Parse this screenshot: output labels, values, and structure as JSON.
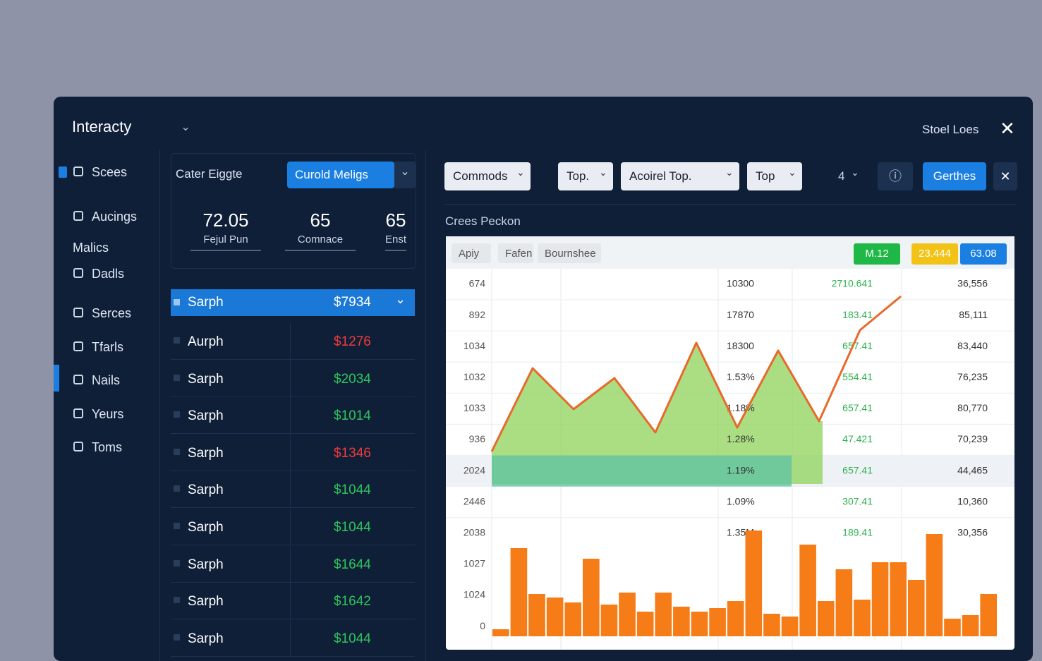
{
  "header": {
    "app_name": "Interacty",
    "user": "Stoel Loes"
  },
  "sidebar": {
    "items": [
      "Scees",
      "Aucings",
      "Malics",
      "Dadls",
      "Serces",
      "Tfarls",
      "Nails",
      "Yeurs",
      "Toms"
    ]
  },
  "left_panel": {
    "label": "Cater Eiggte",
    "button": "Curold Meligs",
    "stats": [
      {
        "value": 72.05,
        "label": "Fejul Pun"
      },
      {
        "value": 65,
        "label": "Comnace"
      },
      {
        "value": 65,
        "label": "Enst"
      }
    ],
    "rows": [
      {
        "name": "Sarph",
        "amount": "$7934",
        "color": "#ffffff"
      },
      {
        "name": "Aurph",
        "amount": "$1276",
        "color": "#ef3b3b"
      },
      {
        "name": "Sarph",
        "amount": "$2034",
        "color": "#2fc45a"
      },
      {
        "name": "Sarph",
        "amount": "$1014",
        "color": "#2fc45a"
      },
      {
        "name": "Sarph",
        "amount": "$1346",
        "color": "#ef3b3b"
      },
      {
        "name": "Sarph",
        "amount": "$1044",
        "color": "#2fc45a"
      },
      {
        "name": "Sarph",
        "amount": "$1044",
        "color": "#2fc45a"
      },
      {
        "name": "Sarph",
        "amount": "$1644",
        "color": "#2fc45a"
      },
      {
        "name": "Sarph",
        "amount": "$1642",
        "color": "#2fc45a"
      },
      {
        "name": "Sarph",
        "amount": "$1044",
        "color": "#2fc45a"
      }
    ]
  },
  "toolbar": {
    "dropdowns": [
      "Commods",
      "Top.",
      "Acoirel Top.",
      "Top",
      "4"
    ],
    "button": "Gerthes"
  },
  "panel": {
    "title": "Crees Peckon",
    "tabs": [
      "Apiy",
      "Fafen",
      "Bournshee"
    ],
    "badges": [
      {
        "text": "M.12",
        "color": "#1fb847"
      },
      {
        "text": "23.444",
        "color": "#f2c316"
      },
      {
        "text": "63.08",
        "color": "#1a7fe0"
      }
    ],
    "row_labels": [
      674,
      892,
      1034,
      1032,
      1033,
      936,
      2024,
      2446,
      2038,
      1027,
      1024,
      0
    ],
    "columns": [
      [
        "10300",
        "17870",
        "18300",
        "1.53%",
        "1.18%",
        "1.28%",
        "1.19%",
        "1.09%",
        "1.35M"
      ],
      [
        "2710.641",
        "183.41",
        "657.41",
        "554.41",
        "657.41",
        "47.421",
        "657.41",
        "307.41",
        "189.41"
      ],
      [
        "36,556",
        "85,111",
        "83,440",
        "76,235",
        "80,770",
        "70,239",
        "44,465",
        "10,360",
        "30,356"
      ]
    ]
  },
  "chart_data": {
    "type": "combo",
    "line": {
      "color": "#e8692a",
      "area_color": "#8fd35a",
      "values": [
        46,
        164,
        106,
        150,
        73,
        200,
        80,
        189,
        89,
        218,
        266
      ]
    },
    "bars": {
      "color": "#f57c16",
      "values": [
        10,
        125,
        60,
        55,
        48,
        110,
        45,
        62,
        35,
        62,
        42,
        35,
        40,
        50,
        150,
        32,
        28,
        130,
        50,
        95,
        52,
        105,
        105,
        80,
        145,
        25,
        30,
        60
      ]
    }
  }
}
